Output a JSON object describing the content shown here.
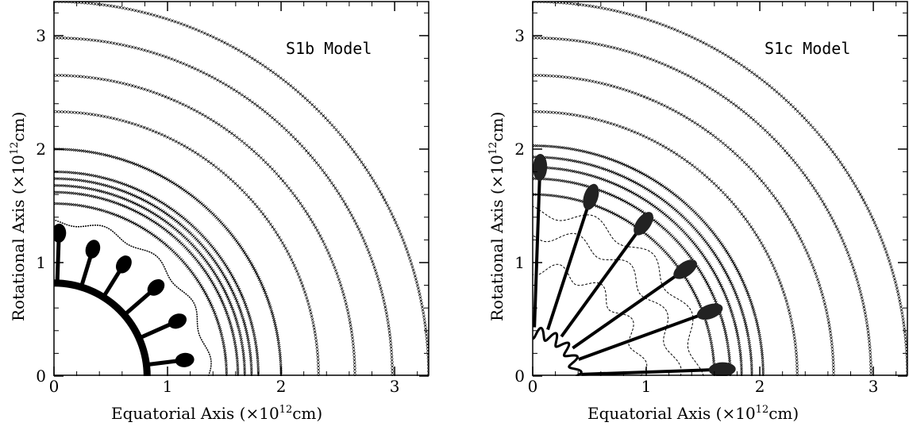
{
  "figure": {
    "panels": [
      {
        "label": "S1b Model",
        "xlabel_pre": "Equatorial Axis (×10",
        "xlabel_sup": "12",
        "xlabel_post": "cm)",
        "ylabel_pre": "Rotational Axis (×10",
        "ylabel_sup": "12",
        "ylabel_post": "cm)"
      },
      {
        "label": "S1c Model",
        "xlabel_pre": "Equatorial Axis (×10",
        "xlabel_sup": "12",
        "xlabel_post": "cm)",
        "ylabel_pre": "Rotational Axis (×10",
        "ylabel_sup": "12",
        "ylabel_post": "cm)"
      }
    ]
  },
  "chart_data": [
    {
      "type": "scatter",
      "title": "S1b Model",
      "xlabel": "Equatorial Axis (×10^12cm)",
      "ylabel": "Rotational Axis (×10^12cm)",
      "xlim": [
        0,
        3.3
      ],
      "ylim": [
        0,
        3.3
      ],
      "xticks": [
        0,
        1,
        2,
        3
      ],
      "yticks": [
        0,
        1,
        2,
        3
      ],
      "grid": false,
      "contour_radii": [
        1.52,
        1.62,
        1.68,
        1.74,
        1.8,
        2.0,
        2.33,
        2.65,
        2.98,
        3.3
      ],
      "inner_core_radius": 0.82,
      "plumes": [
        {
          "angle_deg": 7,
          "tip_radius": 1.2
        },
        {
          "angle_deg": 24,
          "tip_radius": 1.23
        },
        {
          "angle_deg": 41,
          "tip_radius": 1.23
        },
        {
          "angle_deg": 58,
          "tip_radius": 1.2
        },
        {
          "angle_deg": 73,
          "tip_radius": 1.21
        },
        {
          "angle_deg": 88,
          "tip_radius": 1.3
        }
      ],
      "marker": "x"
    },
    {
      "type": "scatter",
      "title": "S1c Model",
      "xlabel": "Equatorial Axis (×10^12cm)",
      "ylabel": "Rotational Axis (×10^12cm)",
      "xlim": [
        0,
        3.3
      ],
      "ylim": [
        0,
        3.3
      ],
      "xticks": [
        0,
        1,
        2,
        3
      ],
      "yticks": [
        0,
        1,
        2,
        3
      ],
      "grid": false,
      "contour_radii": [
        1.6,
        1.74,
        1.84,
        1.93,
        2.03,
        2.33,
        2.65,
        2.98,
        3.3
      ],
      "inner_core_radius": 0.38,
      "jets": [
        {
          "angle_deg": 2,
          "tip_radius": 1.73
        },
        {
          "angle_deg": 20,
          "tip_radius": 1.72
        },
        {
          "angle_deg": 35,
          "tip_radius": 1.7
        },
        {
          "angle_deg": 54,
          "tip_radius": 1.72
        },
        {
          "angle_deg": 72,
          "tip_radius": 1.72
        },
        {
          "angle_deg": 88,
          "tip_radius": 1.9
        }
      ],
      "marker": "x"
    }
  ]
}
